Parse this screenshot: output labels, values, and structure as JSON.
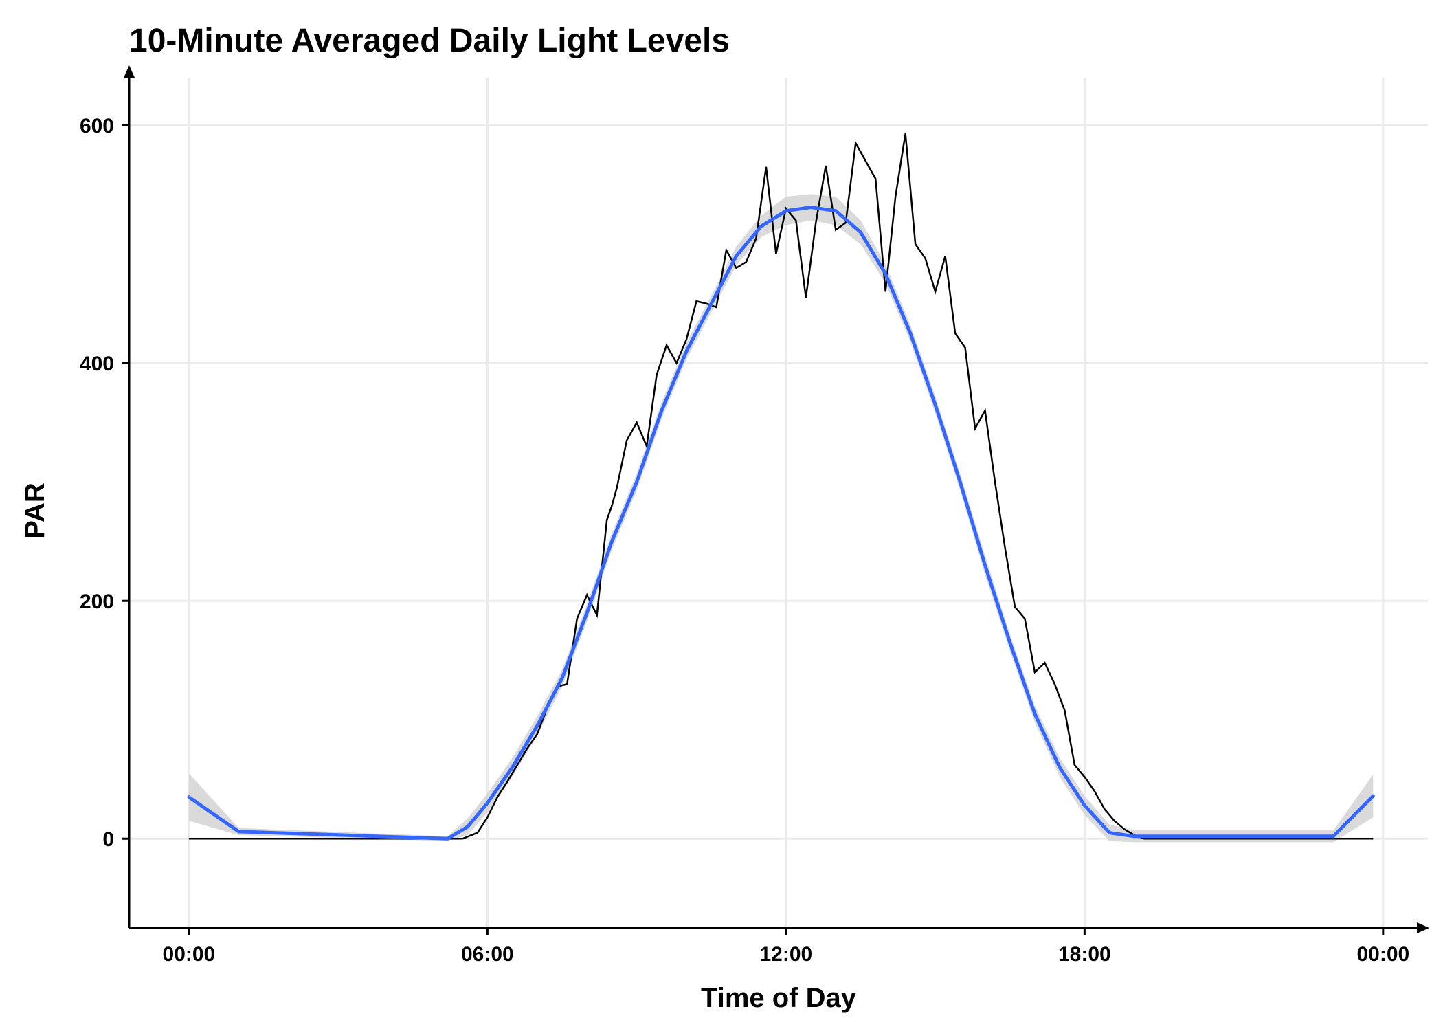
{
  "chart_data": {
    "type": "line",
    "title": "10-Minute Averaged Daily Light Levels",
    "xlabel": "Time of Day",
    "ylabel": "PAR",
    "x_unit": "hours",
    "xlim": [
      -1.2,
      24.9
    ],
    "ylim": [
      -75,
      640
    ],
    "x_ticks": [
      0,
      6,
      12,
      18,
      24
    ],
    "x_tick_labels": [
      "00:00",
      "06:00",
      "12:00",
      "18:00",
      "00:00"
    ],
    "y_ticks": [
      0,
      200,
      400,
      600
    ],
    "y_tick_labels": [
      "0",
      "200",
      "400",
      "600"
    ],
    "grid": true,
    "legend": "none",
    "colors": {
      "raw": "#000000",
      "smooth": "#3366ff",
      "band": "#d3d3d3"
    },
    "series": [
      {
        "x": [
          0,
          5,
          5.5,
          5.8,
          6.0,
          6.2,
          6.4,
          6.6,
          6.8,
          7.0,
          7.2,
          7.4,
          7.6,
          7.8,
          8.0,
          8.2,
          8.4,
          8.5,
          8.6,
          8.8,
          9.0,
          9.2,
          9.4,
          9.6,
          9.8,
          10.0,
          10.2,
          10.4,
          10.6,
          10.8,
          11.0,
          11.2,
          11.4,
          11.6,
          11.8,
          12.0,
          12.2,
          12.4,
          12.6,
          12.8,
          13.0,
          13.2,
          13.4,
          13.6,
          13.8,
          14.0,
          14.2,
          14.4,
          14.6,
          14.8,
          15.0,
          15.2,
          15.4,
          15.6,
          15.8,
          16.0,
          16.2,
          16.4,
          16.6,
          16.8,
          17.0,
          17.2,
          17.4,
          17.6,
          17.8,
          18.0,
          18.2,
          18.4,
          18.6,
          18.8,
          19.0,
          19.2,
          19.4,
          19.6,
          20.0,
          23.8
        ],
        "y": [
          0,
          0,
          0,
          5,
          18,
          35,
          48,
          62,
          76,
          88,
          110,
          128,
          130,
          185,
          205,
          188,
          268,
          280,
          295,
          335,
          350,
          330,
          390,
          415,
          400,
          420,
          452,
          450,
          447,
          495,
          480,
          485,
          505,
          565,
          492,
          530,
          520,
          455,
          518,
          566,
          512,
          518,
          585,
          570,
          555,
          460,
          540,
          593,
          500,
          488,
          460,
          490,
          425,
          413,
          345,
          360,
          300,
          245,
          195,
          185,
          140,
          148,
          130,
          108,
          62,
          52,
          40,
          25,
          15,
          8,
          3,
          0,
          0,
          0,
          0,
          0
        ]
      },
      {
        "x": [
          0,
          1,
          5.2,
          5.6,
          6,
          6.5,
          7,
          7.5,
          8,
          8.5,
          9,
          9.5,
          10,
          10.5,
          11,
          11.5,
          12,
          12.5,
          13,
          13.5,
          14,
          14.5,
          15,
          15.5,
          16,
          16.5,
          17,
          17.5,
          18,
          18.5,
          19,
          19.5,
          22,
          23,
          23.8
        ],
        "y": [
          35,
          6,
          0,
          10,
          30,
          60,
          95,
          135,
          190,
          250,
          300,
          360,
          410,
          450,
          490,
          515,
          528,
          531,
          528,
          510,
          475,
          425,
          365,
          300,
          230,
          165,
          105,
          60,
          28,
          5,
          2,
          2,
          2,
          2,
          36
        ],
        "band_lower": [
          15,
          3,
          -2,
          3,
          22,
          52,
          87,
          128,
          183,
          243,
          293,
          353,
          403,
          443,
          482,
          506,
          516,
          520,
          516,
          500,
          467,
          418,
          358,
          293,
          222,
          158,
          98,
          52,
          20,
          -2,
          -3,
          -3,
          -3,
          -3,
          18
        ],
        "band_upper": [
          55,
          9,
          2,
          17,
          38,
          68,
          103,
          142,
          197,
          257,
          307,
          367,
          417,
          457,
          498,
          524,
          540,
          542,
          540,
          520,
          483,
          432,
          372,
          307,
          238,
          172,
          112,
          68,
          36,
          12,
          7,
          7,
          7,
          7,
          54
        ]
      }
    ]
  }
}
